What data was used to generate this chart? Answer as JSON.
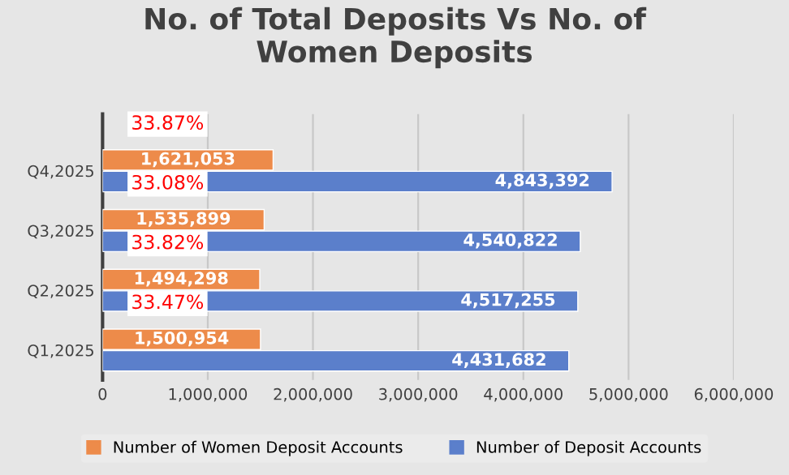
{
  "chart_data": {
    "type": "bar",
    "orientation": "horizontal",
    "title": "No. of Total Deposits Vs No. of\nWomen Deposits",
    "categories": [
      "Q4,2025",
      "Q3,2025",
      "Q2,2025",
      "Q1,2025"
    ],
    "series": [
      {
        "name": "Number of Women Deposit Accounts",
        "color": "#ed8b4a",
        "values": [
          1621053,
          1535899,
          1494298,
          1500954
        ],
        "value_labels": [
          "1,621,053",
          "1,535,899",
          "1,494,298",
          "1,500,954"
        ]
      },
      {
        "name": "Number of Deposit Accounts",
        "color": "#5b7fcb",
        "values": [
          4843392,
          4540822,
          4517255,
          4431682
        ],
        "value_labels": [
          "4,843,392",
          "4,540,822",
          "4,517,255",
          "4,431,682"
        ]
      }
    ],
    "xlim": [
      0,
      6000000
    ],
    "xticks": [
      {
        "value": 0,
        "label": "0"
      },
      {
        "value": 1000000,
        "label": "1,000,000"
      },
      {
        "value": 2000000,
        "label": "2,000,000"
      },
      {
        "value": 3000000,
        "label": "3,000,000"
      },
      {
        "value": 4000000,
        "label": "4,000,000"
      },
      {
        "value": 5000000,
        "label": "5,000,000"
      },
      {
        "value": 6000000,
        "label": "6,000,000"
      }
    ],
    "grid": "x",
    "legend": "bottom",
    "annotations": [
      "33.87%",
      "33.08%",
      "33.82%",
      "33.47%"
    ]
  }
}
